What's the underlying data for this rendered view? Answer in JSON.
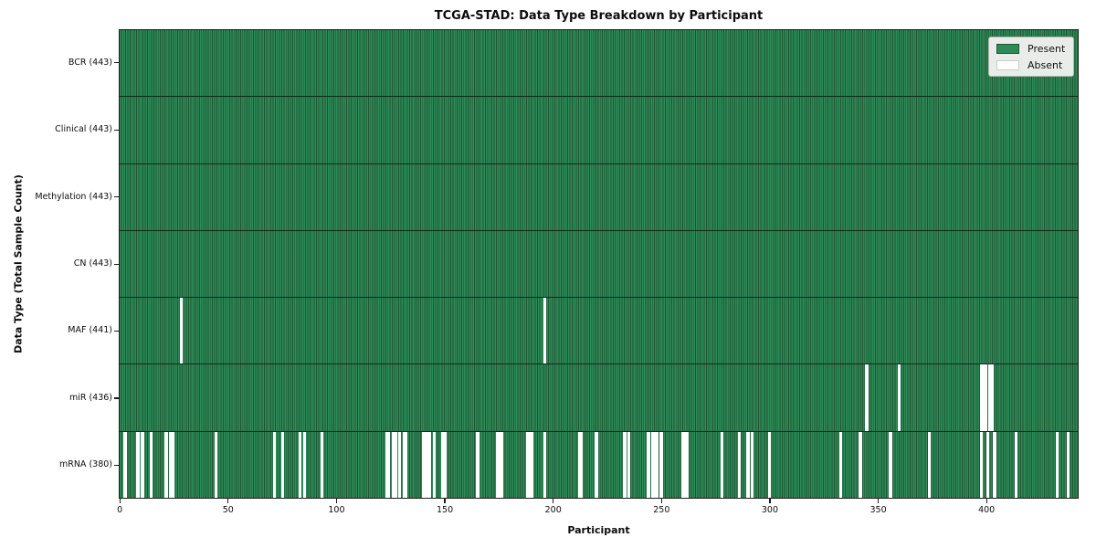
{
  "chart_data": {
    "type": "heatmap",
    "title": "TCGA-STAD: Data Type Breakdown by Participant",
    "xlabel": "Participant",
    "ylabel": "Data Type (Total Sample Count)",
    "x_ticks": [
      0,
      50,
      100,
      150,
      200,
      250,
      300,
      350,
      400
    ],
    "n_participants": 443,
    "xlim": [
      -0.5,
      442.5
    ],
    "grid": false,
    "legend_position": "upper right",
    "colors": {
      "present": "#2e8b57",
      "cell_edge": "#1d5634",
      "absent": "#ffffff",
      "row_separator": "#10271a",
      "legend_bg": "#e9ece8"
    },
    "legend": [
      {
        "label": "Present",
        "color": "#2e8b57"
      },
      {
        "label": "Absent",
        "color": "#ffffff"
      }
    ],
    "rows": [
      {
        "name": "BCR",
        "label": "BCR (443)",
        "total": 443,
        "absent": []
      },
      {
        "name": "Clinical",
        "label": "Clinical (443)",
        "total": 443,
        "absent": []
      },
      {
        "name": "Methylation",
        "label": "Methylation (443)",
        "total": 443,
        "absent": []
      },
      {
        "name": "CN",
        "label": "CN (443)",
        "total": 443,
        "absent": []
      },
      {
        "name": "MAF",
        "label": "MAF (441)",
        "total": 441,
        "absent": [
          28,
          196
        ]
      },
      {
        "name": "miR",
        "label": "miR (436)",
        "total": 436,
        "absent": [
          345,
          360,
          398,
          399,
          400,
          402,
          403
        ]
      },
      {
        "name": "mRNA",
        "label": "mRNA (380)",
        "total": 380,
        "absent": [
          2,
          8,
          10,
          14,
          21,
          23,
          24,
          44,
          71,
          75,
          83,
          85,
          93,
          123,
          124,
          126,
          127,
          129,
          131,
          132,
          140,
          141,
          142,
          143,
          145,
          149,
          150,
          165,
          174,
          175,
          176,
          188,
          189,
          190,
          196,
          212,
          213,
          220,
          233,
          235,
          244,
          246,
          247,
          248,
          250,
          260,
          261,
          262,
          278,
          286,
          290,
          292,
          300,
          333,
          342,
          356,
          374,
          398,
          401,
          404,
          414,
          433,
          438
        ]
      }
    ]
  }
}
